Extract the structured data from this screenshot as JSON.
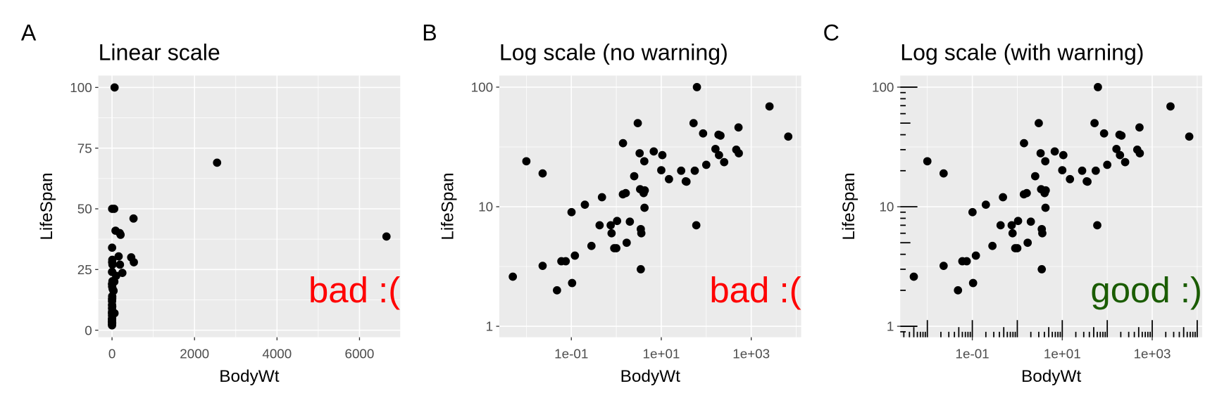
{
  "chart_data": [
    {
      "type": "scatter",
      "panel_label": "A",
      "title": "Linear scale",
      "x_label": "BodyWt",
      "y_label": "LifeSpan",
      "x": [
        6654,
        1.0,
        3.385,
        2547,
        10.55,
        0.023,
        160,
        3.3,
        52.16,
        0.425,
        465,
        187.1,
        0.075,
        3,
        0.785,
        0.2,
        1.41,
        60,
        529,
        27.66,
        0.12,
        207,
        85,
        36.33,
        0.101,
        1.04,
        521,
        100,
        35,
        0.005,
        0.01,
        62,
        0.023,
        0.048,
        1.7,
        3.5,
        250,
        0.48,
        10,
        1.62,
        192,
        2.5,
        4.288,
        0.28,
        4.235,
        6.8,
        0.75,
        3.6,
        14.83,
        55.5,
        1.4,
        0.06,
        0.9,
        2,
        0.104,
        4.19,
        3.5,
        4.05
      ],
      "y": [
        38.6,
        4.5,
        14,
        69,
        27,
        19,
        30.4,
        28,
        50,
        7,
        30,
        40,
        3.5,
        50,
        6,
        10.4,
        34,
        7,
        28,
        20,
        3.9,
        39.3,
        41,
        16.2,
        9,
        7.6,
        46,
        22.4,
        16.3,
        2.6,
        24,
        100,
        3.2,
        2,
        5,
        6.5,
        23.6,
        12,
        20.2,
        13,
        27,
        18,
        13.7,
        4.7,
        9.8,
        29,
        7,
        6,
        17,
        20,
        12.7,
        3.5,
        4.5,
        7.5,
        2.3,
        24,
        3,
        13
      ],
      "color": "#000000",
      "log_x": false,
      "log_y": false,
      "grid": true,
      "xlim": [
        -333,
        6987
      ],
      "ylim": [
        -2.9,
        104.9
      ],
      "xticks": [
        0,
        2000,
        4000,
        6000
      ],
      "yticks": [
        0,
        25,
        50,
        75,
        100
      ],
      "annotation": {
        "text": "bad :(",
        "color": "#ff0000"
      }
    },
    {
      "type": "scatter",
      "panel_label": "B",
      "title": "Log scale (no warning)",
      "x_label": "BodyWt",
      "y_label": "LifeSpan",
      "x": [
        6654,
        1.0,
        3.385,
        2547,
        10.55,
        0.023,
        160,
        3.3,
        52.16,
        0.425,
        465,
        187.1,
        0.075,
        3,
        0.785,
        0.2,
        1.41,
        60,
        529,
        27.66,
        0.12,
        207,
        85,
        36.33,
        0.101,
        1.04,
        521,
        100,
        35,
        0.005,
        0.01,
        62,
        0.023,
        0.048,
        1.7,
        3.5,
        250,
        0.48,
        10,
        1.62,
        192,
        2.5,
        4.288,
        0.28,
        4.235,
        6.8,
        0.75,
        3.6,
        14.83,
        55.5,
        1.4,
        0.06,
        0.9,
        2,
        0.104,
        4.19,
        3.5,
        4.05
      ],
      "y": [
        38.6,
        4.5,
        14,
        69,
        27,
        19,
        30.4,
        28,
        50,
        7,
        30,
        40,
        3.5,
        50,
        6,
        10.4,
        34,
        7,
        28,
        20,
        3.9,
        39.3,
        41,
        16.2,
        9,
        7.6,
        46,
        22.4,
        16.3,
        2.6,
        24,
        100,
        3.2,
        2,
        5,
        6.5,
        23.6,
        12,
        20.2,
        13,
        27,
        18,
        13.7,
        4.7,
        9.8,
        29,
        7,
        6,
        17,
        20,
        12.7,
        3.5,
        4.5,
        7.5,
        2.3,
        24,
        3,
        13
      ],
      "color": "#000000",
      "log_x": true,
      "log_y": true,
      "grid": true,
      "xlim": [
        0.0025,
        12900
      ],
      "ylim": [
        0.81,
        125
      ],
      "xticks": [
        {
          "value": 0.1,
          "label": "1e-01"
        },
        {
          "value": 10,
          "label": "1e+01"
        },
        {
          "value": 1000,
          "label": "1e+03"
        }
      ],
      "yticks": [
        1,
        10,
        100
      ],
      "annotation": {
        "text": "bad :(",
        "color": "#ff0000"
      }
    },
    {
      "type": "scatter",
      "panel_label": "C",
      "title": "Log scale (with warning)",
      "x_label": "BodyWt",
      "y_label": "LifeSpan",
      "x": [
        6654,
        1.0,
        3.385,
        2547,
        10.55,
        0.023,
        160,
        3.3,
        52.16,
        0.425,
        465,
        187.1,
        0.075,
        3,
        0.785,
        0.2,
        1.41,
        60,
        529,
        27.66,
        0.12,
        207,
        85,
        36.33,
        0.101,
        1.04,
        521,
        100,
        35,
        0.005,
        0.01,
        62,
        0.023,
        0.048,
        1.7,
        3.5,
        250,
        0.48,
        10,
        1.62,
        192,
        2.5,
        4.288,
        0.28,
        4.235,
        6.8,
        0.75,
        3.6,
        14.83,
        55.5,
        1.4,
        0.06,
        0.9,
        2,
        0.104,
        4.19,
        3.5,
        4.05
      ],
      "y": [
        38.6,
        4.5,
        14,
        69,
        27,
        19,
        30.4,
        28,
        50,
        7,
        30,
        40,
        3.5,
        50,
        6,
        10.4,
        34,
        7,
        28,
        20,
        3.9,
        39.3,
        41,
        16.2,
        9,
        7.6,
        46,
        22.4,
        16.3,
        2.6,
        24,
        100,
        3.2,
        2,
        5,
        6.5,
        23.6,
        12,
        20.2,
        13,
        27,
        18,
        13.7,
        4.7,
        9.8,
        29,
        7,
        6,
        17,
        20,
        12.7,
        3.5,
        4.5,
        7.5,
        2.3,
        24,
        3,
        13
      ],
      "color": "#000000",
      "log_x": true,
      "log_y": true,
      "grid": true,
      "logticks": true,
      "xlim": [
        0.0025,
        12900
      ],
      "ylim": [
        0.81,
        125
      ],
      "xticks": [
        {
          "value": 0.1,
          "label": "1e-01"
        },
        {
          "value": 10,
          "label": "1e+01"
        },
        {
          "value": 1000,
          "label": "1e+03"
        }
      ],
      "yticks": [
        1,
        10,
        100
      ],
      "annotation": {
        "text": "good :)",
        "color": "#1a5c00"
      }
    }
  ]
}
